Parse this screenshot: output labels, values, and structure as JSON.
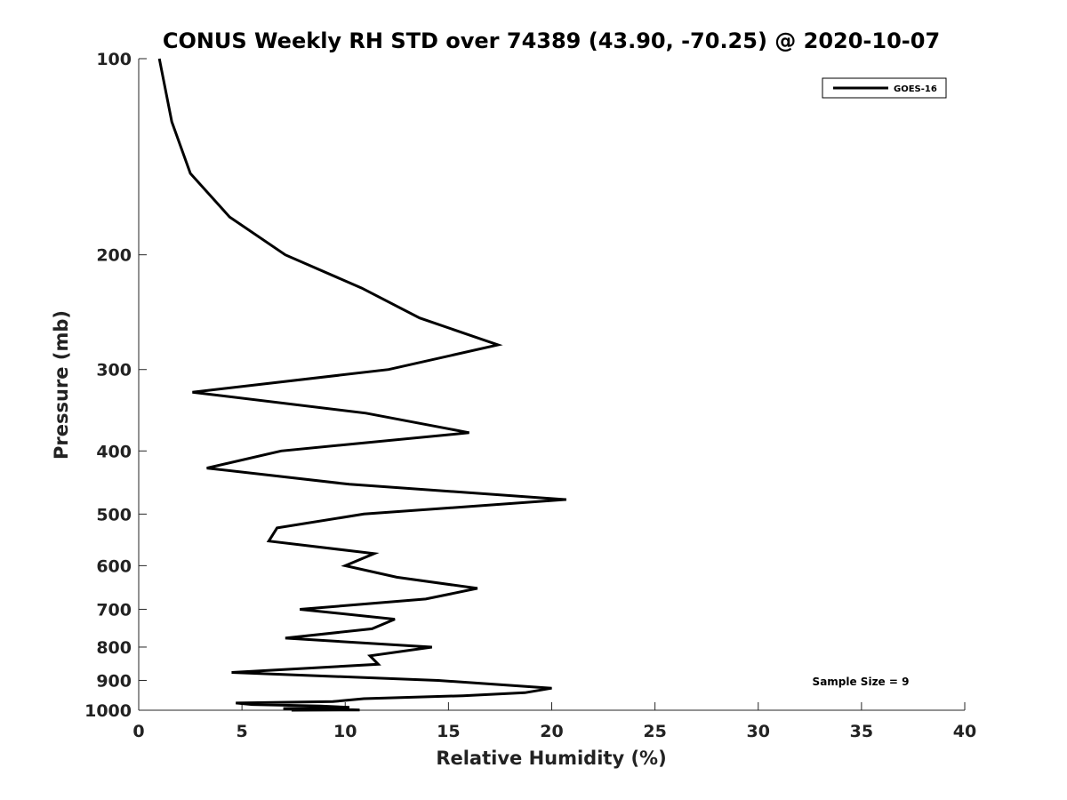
{
  "chart_data": {
    "type": "line",
    "title": "CONUS Weekly RH STD over 74389 (43.90, -70.25) @ 2020-10-07",
    "xlabel": "Relative Humidity (%)",
    "ylabel": "Pressure (mb)",
    "xlim": [
      0,
      40
    ],
    "ylim": [
      100,
      1000
    ],
    "y_scale": "log",
    "y_reversed": true,
    "x_ticks": [
      "0",
      "5",
      "10",
      "15",
      "20",
      "25",
      "30",
      "35",
      "40"
    ],
    "y_ticks": [
      "100",
      "200",
      "300",
      "400",
      "500",
      "600",
      "700",
      "800",
      "900",
      "1000"
    ],
    "grid": false,
    "legend_position": "top-right",
    "series": [
      {
        "name": "GOES-16",
        "color": "#000000",
        "points": [
          [
            1.0,
            100
          ],
          [
            1.6,
            125
          ],
          [
            2.5,
            150
          ],
          [
            4.4,
            175
          ],
          [
            7.1,
            200
          ],
          [
            10.8,
            225
          ],
          [
            13.6,
            250
          ],
          [
            17.4,
            275
          ],
          [
            12.1,
            300
          ],
          [
            2.6,
            325
          ],
          [
            11.0,
            350
          ],
          [
            16.0,
            375
          ],
          [
            6.9,
            400
          ],
          [
            3.3,
            425
          ],
          [
            10.2,
            450
          ],
          [
            20.7,
            475
          ],
          [
            10.9,
            500
          ],
          [
            6.7,
            525
          ],
          [
            6.3,
            550
          ],
          [
            11.4,
            575
          ],
          [
            10.0,
            600
          ],
          [
            12.5,
            625
          ],
          [
            16.4,
            650
          ],
          [
            13.9,
            675
          ],
          [
            7.8,
            700
          ],
          [
            12.4,
            725
          ],
          [
            11.3,
            750
          ],
          [
            7.1,
            775
          ],
          [
            14.2,
            800
          ],
          [
            11.2,
            825
          ],
          [
            11.6,
            850
          ],
          [
            4.5,
            875
          ],
          [
            14.5,
            900
          ],
          [
            20.0,
            925
          ],
          [
            18.7,
            940
          ],
          [
            15.7,
            950
          ],
          [
            10.9,
            960
          ],
          [
            9.4,
            970
          ],
          [
            4.7,
            975
          ],
          [
            5.5,
            980
          ],
          [
            8.8,
            985
          ],
          [
            10.2,
            990
          ],
          [
            7.0,
            994
          ],
          [
            9.6,
            997
          ],
          [
            10.7,
            999
          ],
          [
            7.4,
            1000
          ]
        ]
      }
    ],
    "annotations": [
      "Sample Size = 9"
    ]
  }
}
